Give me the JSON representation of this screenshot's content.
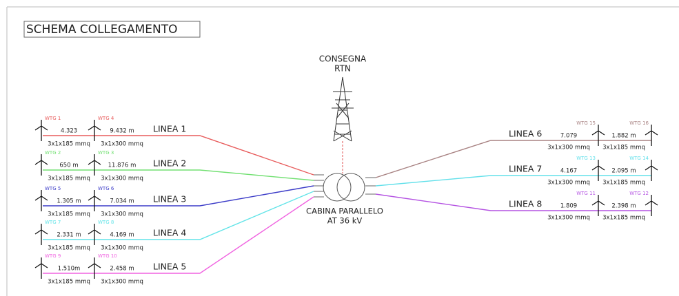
{
  "title": "SCHEMA COLLEGAMENTO",
  "delivery": {
    "label1": "CONSEGNA",
    "label2": "RTN"
  },
  "cabin": {
    "label1": "CABINA PARALLELO",
    "label2": "AT 36 kV"
  },
  "lines": [
    {
      "name": "LINEA 1",
      "color": "#e85c5c",
      "turbines": [
        "WTG 1",
        "WTG 4"
      ],
      "segments": [
        {
          "length": "4.323",
          "cable": "3x1x185 mmq"
        },
        {
          "length": "9.432 m",
          "cable": "3x1x300 mmq"
        }
      ]
    },
    {
      "name": "LINEA 2",
      "color": "#72e072",
      "turbines": [
        "WTG 2",
        "WTG 3"
      ],
      "segments": [
        {
          "length": "650 m",
          "cable": "3x1x185 mmq"
        },
        {
          "length": "11.876 m",
          "cable": "3x1x300 mmq"
        }
      ]
    },
    {
      "name": "LINEA 3",
      "color": "#3c3cc8",
      "turbines": [
        "WTG 5",
        "WTG 6"
      ],
      "segments": [
        {
          "length": "1.305 m",
          "cable": "3x1x185 mmq"
        },
        {
          "length": "7.034 m",
          "cable": "3x1x300 mmq"
        }
      ]
    },
    {
      "name": "LINEA 4",
      "color": "#62e4e8",
      "turbines": [
        "WTG 7",
        "WTG 8"
      ],
      "segments": [
        {
          "length": "2.331 m",
          "cable": "3x1x185 mmq"
        },
        {
          "length": "4.169 m",
          "cable": "3x1x300 mmq"
        }
      ]
    },
    {
      "name": "LINEA 5",
      "color": "#f062e0",
      "turbines": [
        "WTG 9",
        "WTG 10"
      ],
      "segments": [
        {
          "length": "1.510m",
          "cable": "3x1x185 mmq"
        },
        {
          "length": "2.458 m",
          "cable": "3x1x300 mmq"
        }
      ]
    },
    {
      "name": "LINEA 6",
      "color": "#a88282",
      "turbines": [
        "WTG 15",
        "WTG 16"
      ],
      "segments": [
        {
          "length": "7.079",
          "cable": "3x1x300 mmq"
        },
        {
          "length": "1.882 m",
          "cable": "3x1x185 mmq"
        }
      ]
    },
    {
      "name": "LINEA 7",
      "color": "#62e0ea",
      "turbines": [
        "WTG 13",
        "WTG 14"
      ],
      "segments": [
        {
          "length": "4.167",
          "cable": "3x1x300 mmq"
        },
        {
          "length": "2.095 m",
          "cable": "3x1x185 mmq"
        }
      ]
    },
    {
      "name": "LINEA 8",
      "color": "#b452e2",
      "turbines": [
        "WTG 11",
        "WTG 12"
      ],
      "segments": [
        {
          "length": "1.809",
          "cable": "3x1x300 mmq"
        },
        {
          "length": "2.398 m",
          "cable": "3x1x185 mmq"
        }
      ]
    }
  ]
}
